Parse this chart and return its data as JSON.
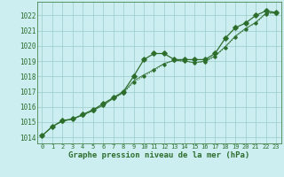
{
  "xlabel": "Graphe pression niveau de la mer (hPa)",
  "bg_color": "#cceef0",
  "grid_color": "#99cccc",
  "line_color": "#2d6e2d",
  "xlim": [
    -0.5,
    23.5
  ],
  "ylim": [
    1013.6,
    1022.9
  ],
  "yticks": [
    1014,
    1015,
    1016,
    1017,
    1018,
    1019,
    1020,
    1021,
    1022
  ],
  "xticks": [
    0,
    1,
    2,
    3,
    4,
    5,
    6,
    7,
    8,
    9,
    10,
    11,
    12,
    13,
    14,
    15,
    16,
    17,
    18,
    19,
    20,
    21,
    22,
    23
  ],
  "series1_x": [
    0,
    1,
    2,
    3,
    4,
    5,
    6,
    7,
    8,
    9,
    10,
    11,
    12,
    13,
    14,
    15,
    16,
    17,
    18,
    19,
    20,
    21,
    22,
    23
  ],
  "series1_y": [
    1014.1,
    1014.7,
    1015.1,
    1015.2,
    1015.5,
    1015.8,
    1016.2,
    1016.6,
    1017.0,
    1018.0,
    1019.1,
    1019.5,
    1019.5,
    1019.1,
    1019.1,
    1019.1,
    1019.1,
    1019.5,
    1020.5,
    1021.2,
    1021.5,
    1022.0,
    1022.3,
    1022.2
  ],
  "series2_x": [
    0,
    1,
    2,
    3,
    4,
    5,
    6,
    7,
    8,
    9,
    10,
    11,
    12,
    13,
    14,
    15,
    16,
    17,
    18,
    19,
    20,
    21,
    22,
    23
  ],
  "series2_y": [
    1014.1,
    1014.7,
    1015.05,
    1015.2,
    1015.45,
    1015.75,
    1016.1,
    1016.55,
    1016.9,
    1017.6,
    1018.0,
    1018.4,
    1018.8,
    1019.05,
    1019.0,
    1018.9,
    1018.95,
    1019.3,
    1019.9,
    1020.6,
    1021.1,
    1021.5,
    1022.1,
    1022.15
  ],
  "series3_x": [
    0,
    1,
    2,
    3,
    4,
    5,
    6,
    7,
    8,
    9,
    10,
    11,
    12,
    13,
    14,
    15,
    16,
    17,
    18,
    19,
    20,
    21,
    22,
    23
  ],
  "series3_y": [
    1014.1,
    1014.7,
    1015.05,
    1015.2,
    1015.45,
    1015.75,
    1016.1,
    1016.55,
    1016.95,
    1017.7,
    1018.1,
    1018.45,
    1018.85,
    1019.05,
    1019.0,
    1018.9,
    1019.0,
    1019.35,
    1019.95,
    1020.65,
    1021.15,
    1021.55,
    1022.15,
    1022.2
  ]
}
